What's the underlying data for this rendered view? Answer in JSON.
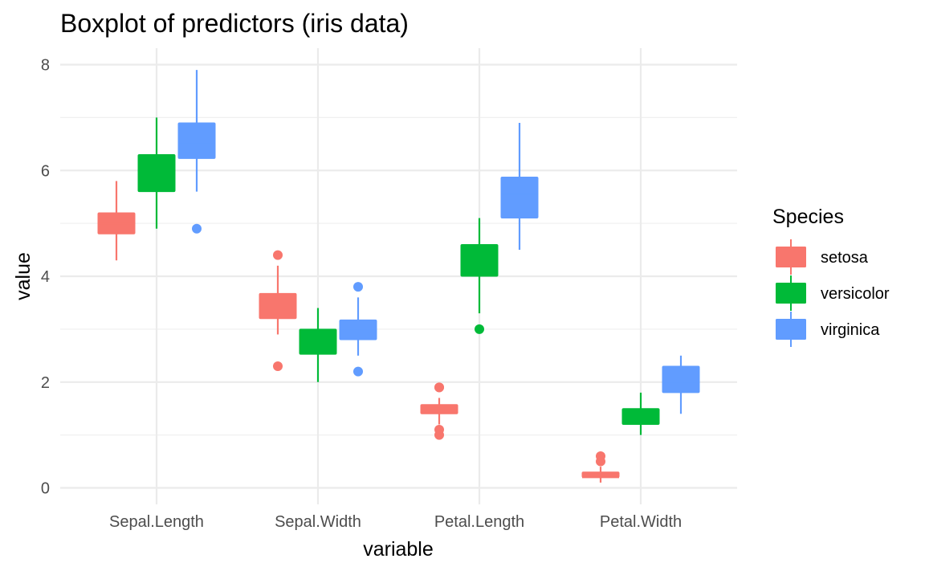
{
  "chart_data": {
    "type": "boxplot",
    "title": "Boxplot of predictors (iris data)",
    "xlabel": "variable",
    "ylabel": "value",
    "categories": [
      "Sepal.Length",
      "Sepal.Width",
      "Petal.Length",
      "Petal.Width"
    ],
    "y_ticks": [
      "0",
      "2",
      "4",
      "6",
      "8"
    ],
    "ylim": [
      -0.3,
      8.5
    ],
    "grid": true,
    "legend": {
      "title": "Species",
      "position": "right"
    },
    "series": [
      {
        "name": "setosa",
        "color": "#F8766D",
        "boxes": [
          {
            "whisker_low": 4.3,
            "q1": 4.8,
            "median": 5.0,
            "q3": 5.2,
            "whisker_high": 5.8,
            "outliers": []
          },
          {
            "whisker_low": 2.9,
            "q1": 3.2,
            "median": 3.4,
            "q3": 3.675,
            "whisker_high": 4.2,
            "outliers": [
              2.3,
              4.4
            ]
          },
          {
            "whisker_low": 1.2,
            "q1": 1.4,
            "median": 1.5,
            "q3": 1.575,
            "whisker_high": 1.7,
            "outliers": [
              1.0,
              1.1,
              1.9,
              1.9
            ]
          },
          {
            "whisker_low": 0.1,
            "q1": 0.2,
            "median": 0.2,
            "q3": 0.3,
            "whisker_high": 0.4,
            "outliers": [
              0.5,
              0.6
            ]
          }
        ]
      },
      {
        "name": "versicolor",
        "color": "#00BA38",
        "boxes": [
          {
            "whisker_low": 4.9,
            "q1": 5.6,
            "median": 5.9,
            "q3": 6.3,
            "whisker_high": 7.0,
            "outliers": []
          },
          {
            "whisker_low": 2.0,
            "q1": 2.525,
            "median": 2.8,
            "q3": 3.0,
            "whisker_high": 3.4,
            "outliers": []
          },
          {
            "whisker_low": 3.3,
            "q1": 4.0,
            "median": 4.35,
            "q3": 4.6,
            "whisker_high": 5.1,
            "outliers": [
              3.0
            ]
          },
          {
            "whisker_low": 1.0,
            "q1": 1.2,
            "median": 1.3,
            "q3": 1.5,
            "whisker_high": 1.8,
            "outliers": []
          }
        ]
      },
      {
        "name": "virginica",
        "color": "#619CFF",
        "boxes": [
          {
            "whisker_low": 5.6,
            "q1": 6.225,
            "median": 6.5,
            "q3": 6.9,
            "whisker_high": 7.9,
            "outliers": [
              4.9
            ]
          },
          {
            "whisker_low": 2.5,
            "q1": 2.8,
            "median": 3.0,
            "q3": 3.175,
            "whisker_high": 3.6,
            "outliers": [
              2.2,
              3.8
            ]
          },
          {
            "whisker_low": 4.5,
            "q1": 5.1,
            "median": 5.55,
            "q3": 5.875,
            "whisker_high": 6.9,
            "outliers": []
          },
          {
            "whisker_low": 1.4,
            "q1": 1.8,
            "median": 2.0,
            "q3": 2.3,
            "whisker_high": 2.5,
            "outliers": []
          }
        ]
      }
    ]
  }
}
